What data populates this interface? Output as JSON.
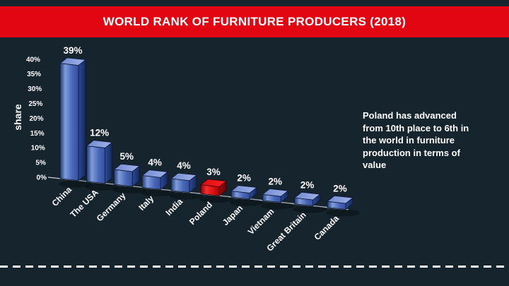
{
  "page": {
    "background_color": "#16242e",
    "dashed_line_color": "#ffffff"
  },
  "header": {
    "title": "WORLD RANK OF FURNITURE PRODUCERS (2018)",
    "banner_color": "#e20613",
    "text_color": "#ffffff"
  },
  "chart_data": {
    "type": "bar",
    "style": "3d-perspective",
    "title": "WORLD RANK OF FURNITURE PRODUCERS (2018)",
    "ylabel": "share",
    "xlabel": "",
    "categories": [
      "China",
      "The USA",
      "Germany",
      "Italy",
      "India",
      "Poland",
      "Japan",
      "Vietnam",
      "Great Britain",
      "Canada"
    ],
    "values": [
      39,
      12,
      5,
      4,
      4,
      3,
      2,
      2,
      2,
      2
    ],
    "value_labels": [
      "39%",
      "12%",
      "5%",
      "4%",
      "4%",
      "3%",
      "2%",
      "2%",
      "2%",
      "2%"
    ],
    "ytick_labels": [
      "0%",
      "5%",
      "10%",
      "15%",
      "20%",
      "25%",
      "30%",
      "35%",
      "40%"
    ],
    "ylim": [
      0,
      40
    ],
    "ytick_step": 5,
    "grid": false,
    "legend": false,
    "bar_color": "#4a68b8",
    "highlight": {
      "index": 5,
      "category": "Poland",
      "color": "#e20613"
    }
  },
  "annotation": {
    "lines": [
      "Poland has advanced",
      "from 10th place to 6th in",
      "the world in furniture",
      "production in terms of",
      "value"
    ]
  }
}
